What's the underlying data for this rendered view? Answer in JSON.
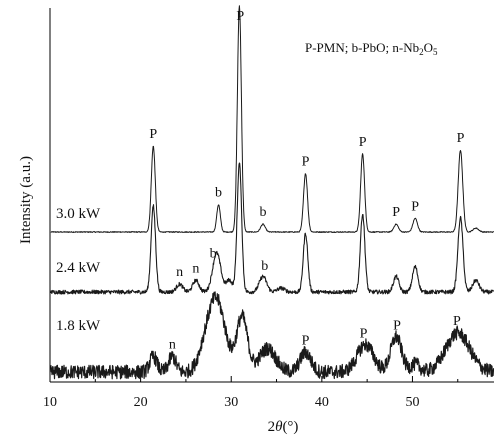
{
  "chart_data": {
    "type": "line",
    "title": "",
    "legend_note": "P-PMN; b-PbO; n-Nb₂O₅",
    "xlabel_main": "2",
    "xlabel_theta": "θ",
    "xlabel_unit": "(°)",
    "ylabel": "Intensity (a.u.)",
    "xlim": [
      10,
      59
    ],
    "xticks": [
      10,
      20,
      30,
      40,
      50
    ],
    "y_ticks_shown": false,
    "series": [
      {
        "name": "3.0 kW",
        "noise": 0.0012,
        "peaks": [
          [
            21.4,
            0.22,
            0.22
          ],
          [
            28.6,
            0.07,
            0.2
          ],
          [
            30.9,
            0.58,
            0.22
          ],
          [
            33.5,
            0.02,
            0.25
          ],
          [
            38.2,
            0.15,
            0.22
          ],
          [
            44.5,
            0.2,
            0.22
          ],
          [
            48.2,
            0.02,
            0.25
          ],
          [
            50.3,
            0.035,
            0.25
          ],
          [
            55.3,
            0.21,
            0.25
          ],
          [
            57.0,
            0.01,
            0.3
          ]
        ]
      },
      {
        "name": "2.4 kW",
        "noise": 0.005,
        "peaks": [
          [
            21.4,
            0.22,
            0.25
          ],
          [
            24.3,
            0.02,
            0.35
          ],
          [
            26.1,
            0.03,
            0.35
          ],
          [
            28.4,
            0.1,
            0.45
          ],
          [
            29.8,
            0.03,
            0.35
          ],
          [
            30.9,
            0.33,
            0.25
          ],
          [
            33.5,
            0.04,
            0.4
          ],
          [
            35.5,
            0.01,
            0.4
          ],
          [
            38.2,
            0.15,
            0.25
          ],
          [
            44.5,
            0.2,
            0.25
          ],
          [
            48.2,
            0.04,
            0.3
          ],
          [
            50.3,
            0.065,
            0.3
          ],
          [
            55.3,
            0.19,
            0.28
          ],
          [
            57.0,
            0.03,
            0.35
          ]
        ]
      },
      {
        "name": "1.8 kW",
        "noise": 0.018,
        "peaks": [
          [
            21.4,
            0.04,
            0.4
          ],
          [
            23.5,
            0.04,
            0.4
          ],
          [
            26.8,
            0.02,
            0.6
          ],
          [
            28.3,
            0.19,
            1.0
          ],
          [
            31.2,
            0.14,
            0.6
          ],
          [
            34.0,
            0.06,
            0.9
          ],
          [
            38.2,
            0.05,
            0.6
          ],
          [
            44.8,
            0.07,
            0.9
          ],
          [
            48.2,
            0.09,
            0.6
          ],
          [
            50.3,
            0.02,
            0.5
          ],
          [
            55.0,
            0.1,
            1.3
          ]
        ]
      }
    ],
    "peak_labels": [
      {
        "text": "P",
        "x": 21.4,
        "series": 0
      },
      {
        "text": "b",
        "x": 28.6,
        "series": 0
      },
      {
        "text": "P",
        "x": 31.0,
        "series": 0
      },
      {
        "text": "b",
        "x": 33.5,
        "series": 0
      },
      {
        "text": "P",
        "x": 38.2,
        "series": 0
      },
      {
        "text": "P",
        "x": 44.5,
        "series": 0
      },
      {
        "text": "P",
        "x": 48.2,
        "series": 0
      },
      {
        "text": "P",
        "x": 50.3,
        "series": 0
      },
      {
        "text": "P",
        "x": 55.3,
        "series": 0
      },
      {
        "text": "b",
        "x": 28.0,
        "series": 1
      },
      {
        "text": "n",
        "x": 24.3,
        "series": 1
      },
      {
        "text": "n",
        "x": 26.1,
        "series": 1
      },
      {
        "text": "b",
        "x": 33.7,
        "series": 1
      },
      {
        "text": "n",
        "x": 23.5,
        "series": 2
      },
      {
        "text": "P",
        "x": 38.2,
        "series": 2
      },
      {
        "text": "P",
        "x": 44.6,
        "series": 2
      },
      {
        "text": "P",
        "x": 48.3,
        "series": 2
      },
      {
        "text": "P",
        "x": 54.9,
        "series": 2
      }
    ]
  }
}
